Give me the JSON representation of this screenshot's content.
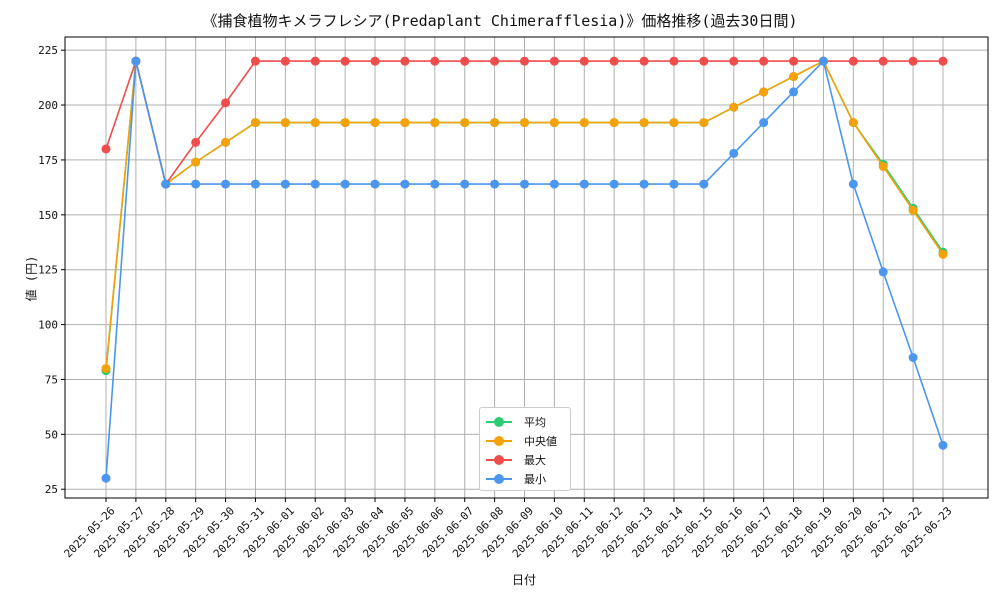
{
  "chart_data": {
    "type": "line",
    "title": "《捕食植物キメラフレシア(Predaplant Chimerafflesia)》価格推移(過去30日間)",
    "xlabel": "日付",
    "ylabel": "値 (円)",
    "ylim": [
      21,
      231
    ],
    "yticks": [
      25,
      50,
      75,
      100,
      125,
      150,
      175,
      200,
      225
    ],
    "grid": true,
    "legend_position": "lower-center",
    "categories": [
      "2025-05-26",
      "2025-05-27",
      "2025-05-28",
      "2025-05-29",
      "2025-05-30",
      "2025-05-31",
      "2025-06-01",
      "2025-06-02",
      "2025-06-03",
      "2025-06-04",
      "2025-06-05",
      "2025-06-06",
      "2025-06-07",
      "2025-06-08",
      "2025-06-09",
      "2025-06-10",
      "2025-06-11",
      "2025-06-12",
      "2025-06-13",
      "2025-06-14",
      "2025-06-15",
      "2025-06-16",
      "2025-06-17",
      "2025-06-18",
      "2025-06-19",
      "2025-06-20",
      "2025-06-21",
      "2025-06-22",
      "2025-06-23"
    ],
    "series": [
      {
        "name": "平均",
        "color": "#2ecc71",
        "values": [
          79,
          220,
          164,
          174,
          183,
          192,
          192,
          192,
          192,
          192,
          192,
          192,
          192,
          192,
          192,
          192,
          192,
          192,
          192,
          192,
          192,
          199,
          206,
          213,
          220,
          192,
          173,
          153,
          133
        ]
      },
      {
        "name": "中央値",
        "color": "#f5a20a",
        "values": [
          80,
          220,
          164,
          174,
          183,
          192,
          192,
          192,
          192,
          192,
          192,
          192,
          192,
          192,
          192,
          192,
          192,
          192,
          192,
          192,
          192,
          199,
          206,
          213,
          220,
          192,
          172,
          152,
          132
        ]
      },
      {
        "name": "最大",
        "color": "#ef4c4c",
        "values": [
          180,
          220,
          164,
          183,
          201,
          220,
          220,
          220,
          220,
          220,
          220,
          220,
          220,
          220,
          220,
          220,
          220,
          220,
          220,
          220,
          220,
          220,
          220,
          220,
          220,
          220,
          220,
          220,
          220
        ]
      },
      {
        "name": "最小",
        "color": "#4b96ee",
        "values": [
          30,
          220,
          164,
          164,
          164,
          164,
          164,
          164,
          164,
          164,
          164,
          164,
          164,
          164,
          164,
          164,
          164,
          164,
          164,
          164,
          164,
          178,
          192,
          206,
          220,
          164,
          124,
          85,
          45
        ]
      }
    ]
  }
}
